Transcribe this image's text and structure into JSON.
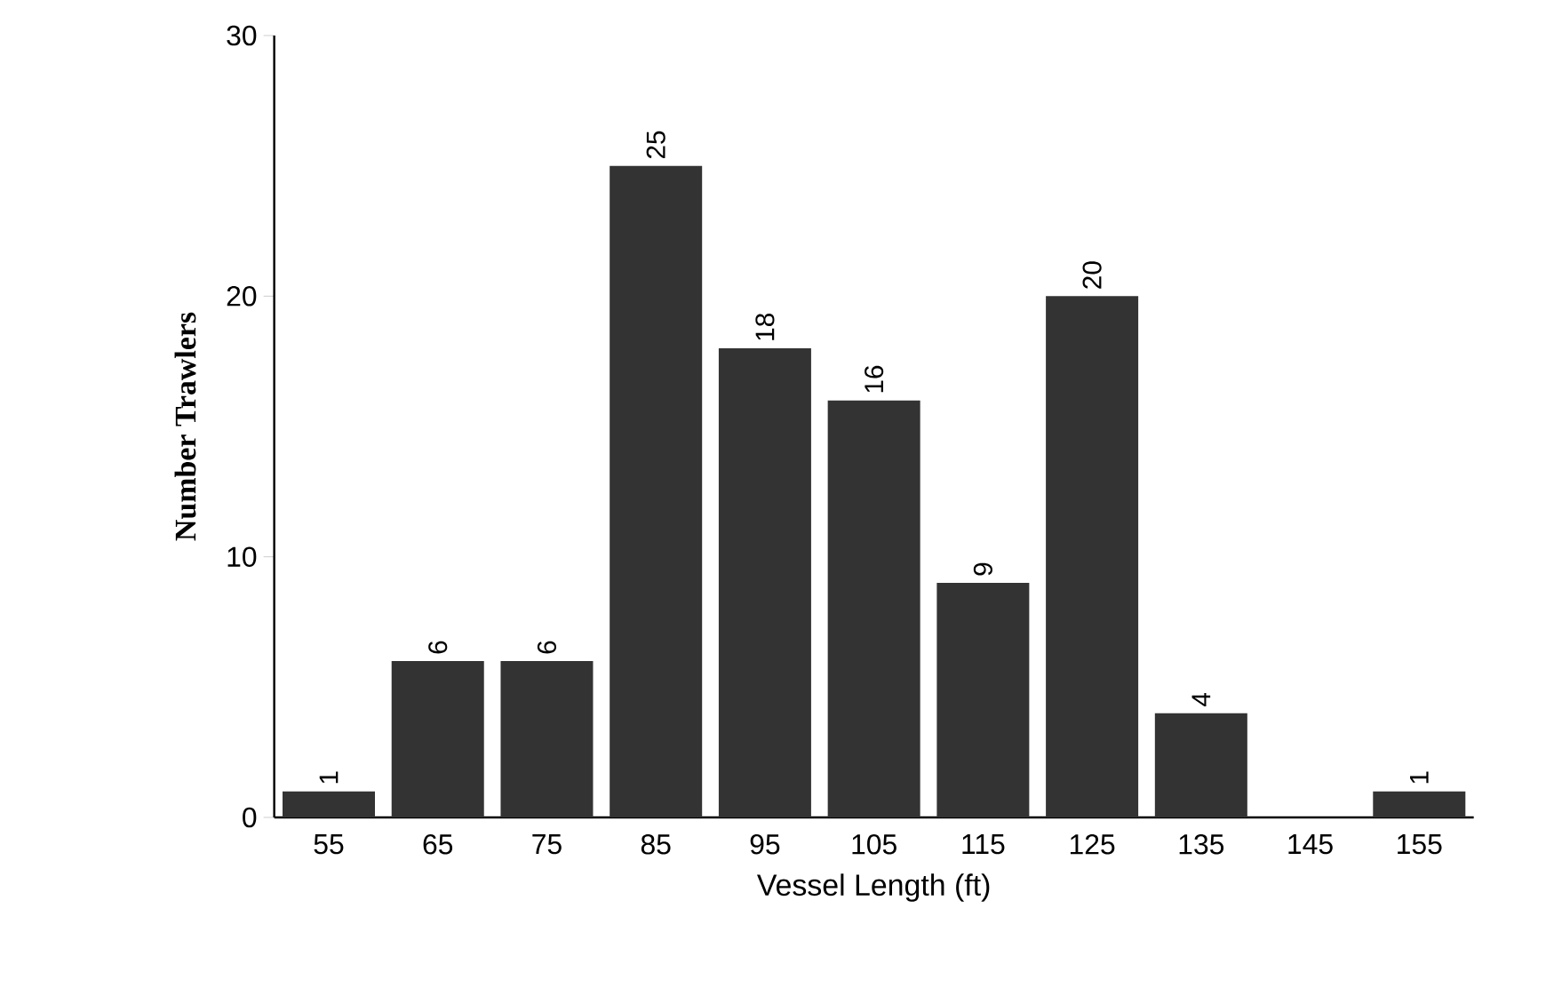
{
  "chart_data": {
    "type": "bar",
    "xlabel": "Vessel Length (ft)",
    "ylabel": "Number Trawlers",
    "categories": [
      "55",
      "65",
      "75",
      "85",
      "95",
      "105",
      "115",
      "125",
      "135",
      "145",
      "155"
    ],
    "values": [
      1,
      6,
      6,
      25,
      18,
      16,
      9,
      20,
      4,
      0,
      1
    ],
    "value_labels": [
      "1",
      "6",
      "6",
      "25",
      "18",
      "16",
      "9",
      "20",
      "4",
      null,
      "1"
    ],
    "color": "#333333",
    "ylim": [
      0,
      30
    ],
    "yticks": [
      0,
      10,
      20,
      30
    ],
    "grid": false
  }
}
